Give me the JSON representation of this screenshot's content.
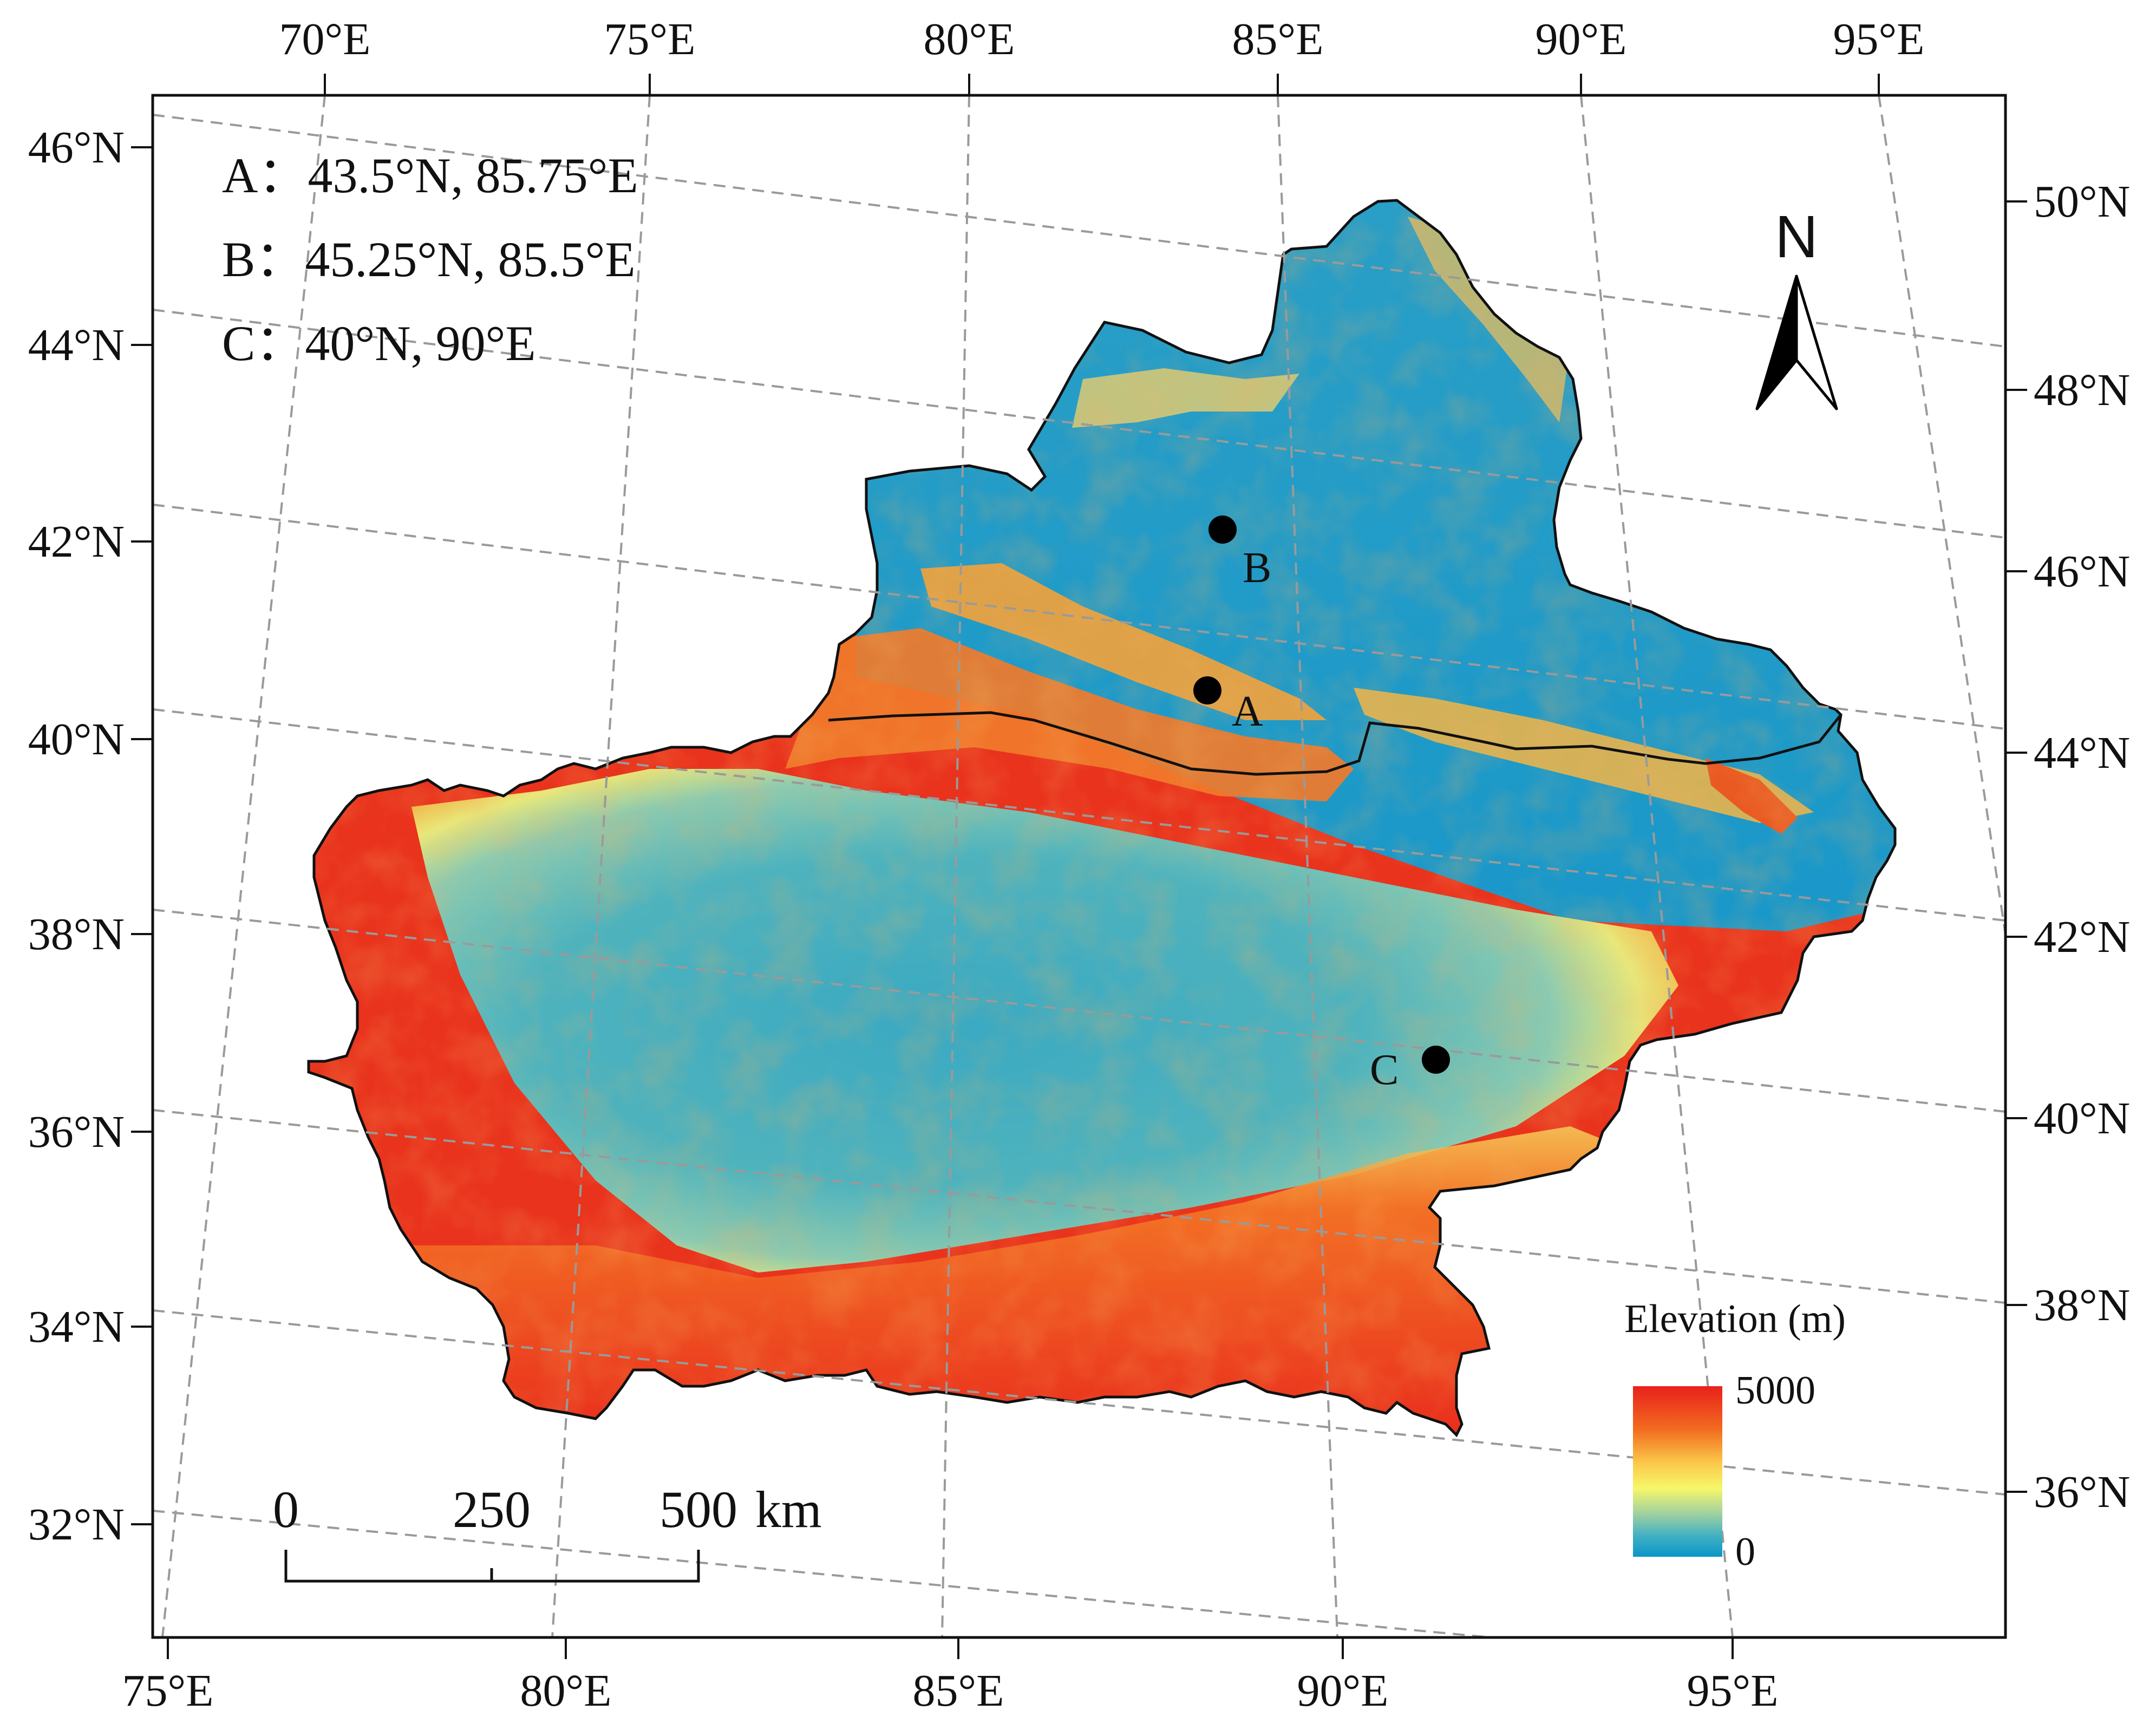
{
  "info": {
    "lines": [
      "A：43.5°N, 85.75°E",
      "B：45.25°N, 85.5°E",
      "C：40°N, 90°E"
    ]
  },
  "points": [
    {
      "id": "A",
      "label": "A"
    },
    {
      "id": "B",
      "label": "B"
    },
    {
      "id": "C",
      "label": "C"
    }
  ],
  "north_arrow": {
    "label": "N"
  },
  "legend": {
    "title": "Elevation (m)",
    "max_label": "5000",
    "min_label": "0",
    "colors": [
      "#e8211c",
      "#f26a1f",
      "#fbc84a",
      "#f6f76a",
      "#9fd0a0",
      "#3fb0c4",
      "#0a96c7"
    ]
  },
  "scale_bar": {
    "labels": [
      "0",
      "250",
      "500"
    ],
    "unit": "km"
  },
  "graticule": {
    "top": [
      "70°E",
      "75°E",
      "80°E",
      "85°E",
      "90°E",
      "95°E"
    ],
    "bottom": [
      "75°E",
      "80°E",
      "85°E",
      "90°E",
      "95°E"
    ],
    "left": [
      "46°N",
      "44°N",
      "42°N",
      "40°N",
      "38°N",
      "36°N",
      "34°N",
      "32°N"
    ],
    "right": [
      "50°N",
      "48°N",
      "46°N",
      "44°N",
      "42°N",
      "40°N",
      "38°N",
      "36°N"
    ]
  }
}
